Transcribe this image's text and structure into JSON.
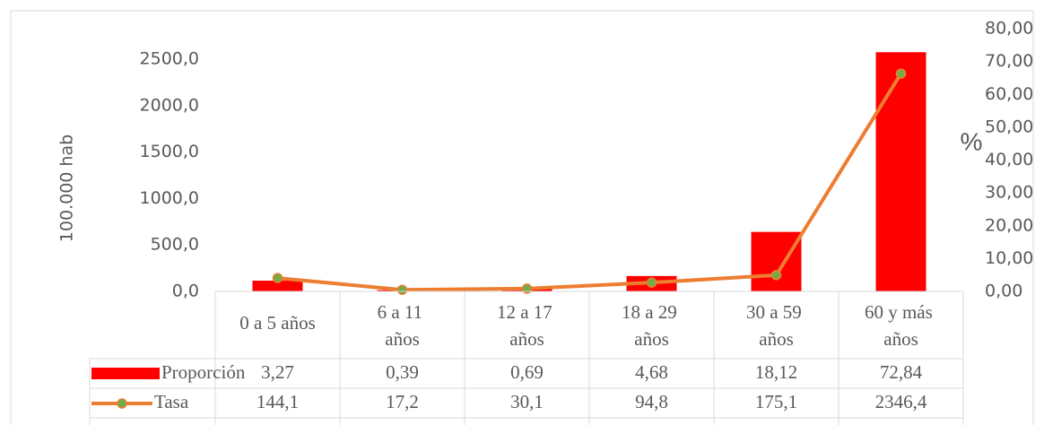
{
  "chart_data": {
    "type": "bar",
    "y_label": "100.000 hab",
    "y2_label": "%",
    "categories": [
      "0 a 5 años",
      "6 a 11 años",
      "12 a 17 años",
      "18 a 29 años",
      "30 a 59 años",
      "60 y más años"
    ],
    "series": [
      {
        "name": "Proporción",
        "type": "bar",
        "axis": "y2",
        "color": "#ff0000",
        "values": [
          3.27,
          0.39,
          0.69,
          4.68,
          18.12,
          72.84
        ],
        "value_labels": [
          "3,27",
          "0,39",
          "0,69",
          "4,68",
          "18,12",
          "72,84"
        ]
      },
      {
        "name": "Tasa",
        "type": "line",
        "axis": "y",
        "color": "#ed7d31",
        "marker_color": "#70ad47",
        "values": [
          144.1,
          17.2,
          30.1,
          94.8,
          175.1,
          2346.4
        ],
        "value_labels": [
          "144,1",
          "17,2",
          "30,1",
          "94,8",
          "175,1",
          "2346,4"
        ]
      }
    ],
    "ylim": [
      0,
      2830
    ],
    "yticks": [
      {
        "value": 0,
        "label": "0,0"
      },
      {
        "value": 500,
        "label": "500,0"
      },
      {
        "value": 1000,
        "label": "1000,0"
      },
      {
        "value": 1500,
        "label": "1500,0"
      },
      {
        "value": 2000,
        "label": "2000,0"
      },
      {
        "value": 2500,
        "label": "2500,0"
      }
    ],
    "y2lim": [
      0,
      80
    ],
    "y2ticks": [
      {
        "value": 0,
        "label": "0,00"
      },
      {
        "value": 10,
        "label": "10,00"
      },
      {
        "value": 20,
        "label": "20,00"
      },
      {
        "value": 30,
        "label": "30,00"
      },
      {
        "value": 40,
        "label": "40,00"
      },
      {
        "value": 50,
        "label": "50,00"
      },
      {
        "value": 60,
        "label": "60,00"
      },
      {
        "value": 70,
        "label": "70,00"
      },
      {
        "value": 80,
        "label": "80,00"
      }
    ]
  }
}
